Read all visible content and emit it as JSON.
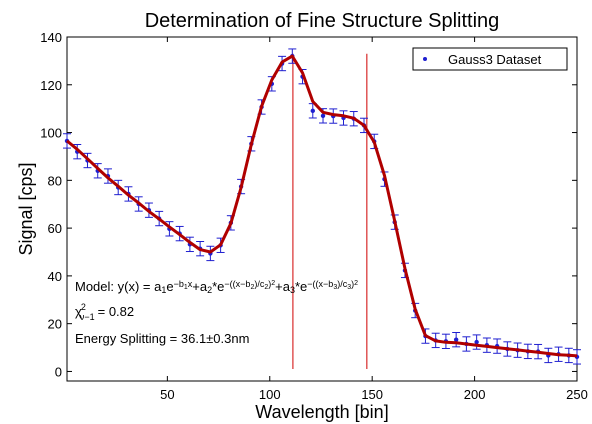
{
  "chart_data": {
    "type": "scatter",
    "title": "Determination of Fine Structure Splitting",
    "xlabel": "Wavelength [bin]",
    "ylabel": "Signal [cps]",
    "xlim": [
      1,
      250
    ],
    "ylim": [
      -4,
      140
    ],
    "xticks": [
      50,
      100,
      150,
      200,
      250
    ],
    "yticks": [
      0,
      20,
      40,
      60,
      80,
      100,
      120,
      140
    ],
    "grid": false,
    "legend": {
      "placement": "top-right",
      "entries": [
        "Gauss3 Dataset"
      ]
    },
    "annotations": {
      "model_prefix": "Model: y(x) =",
      "chi_line_value": "= 0.82",
      "energy": "Energy Splitting = 36.1±0.3nm"
    },
    "vertical_lines": [
      111.3,
      147.4
    ],
    "series": [
      {
        "name": "Gauss3 Dataset",
        "kind": "data-with-error-bars",
        "color": "#1f1fd0",
        "x": [
          1,
          6,
          11,
          16,
          21,
          26,
          31,
          36,
          41,
          46,
          51,
          56,
          61,
          66,
          71,
          76,
          81,
          86,
          91,
          96,
          101,
          106,
          111,
          116,
          121,
          126,
          131,
          136,
          141,
          146,
          151,
          156,
          161,
          166,
          171,
          176,
          181,
          186,
          191,
          196,
          201,
          206,
          211,
          216,
          221,
          226,
          231,
          236,
          241,
          246,
          250
        ],
        "y": [
          96.5,
          92.0,
          88.3,
          84.0,
          81.8,
          77.0,
          74.3,
          70.1,
          67.5,
          64.0,
          59.7,
          57.7,
          53.2,
          51.4,
          49.4,
          52.8,
          62.2,
          77.4,
          95.3,
          110.7,
          120.4,
          128.9,
          132.0,
          123.4,
          109.1,
          107.0,
          106.9,
          106.1,
          105.8,
          103.0,
          96.3,
          80.5,
          62.5,
          42.3,
          25.5,
          14.8,
          13.0,
          12.6,
          13.3,
          11.5,
          12.3,
          11.0,
          10.6,
          9.4,
          8.9,
          8.4,
          8.3,
          6.7,
          7.2,
          6.7,
          6.1
        ],
        "error_bar": 3
      },
      {
        "name": "",
        "kind": "fit-line",
        "color": "#b00000",
        "x": [
          1,
          6,
          11,
          16,
          21,
          26,
          31,
          36,
          41,
          46,
          51,
          56,
          61,
          66,
          71,
          76,
          81,
          86,
          91,
          96,
          101,
          106,
          111,
          116,
          121,
          126,
          131,
          136,
          141,
          146,
          151,
          156,
          161,
          166,
          171,
          176,
          181,
          186,
          191,
          196,
          201,
          206,
          211,
          216,
          221,
          226,
          231,
          236,
          241,
          246,
          250
        ],
        "y": [
          96.5,
          93.0,
          89.0,
          85.0,
          81.0,
          77.5,
          73.8,
          70.5,
          67.0,
          63.8,
          60.5,
          57.3,
          54.0,
          51.0,
          50.0,
          53.0,
          62.0,
          77.0,
          95.0,
          111.0,
          122.0,
          129.5,
          132.0,
          125.0,
          113.0,
          108.5,
          107.5,
          107.0,
          106.0,
          103.0,
          96.0,
          82.0,
          63.0,
          43.0,
          26.0,
          15.0,
          12.8,
          12.2,
          12.0,
          11.5,
          11.0,
          10.5,
          10.0,
          9.5,
          9.0,
          8.5,
          8.0,
          7.5,
          7.0,
          6.8,
          6.5
        ]
      }
    ]
  }
}
